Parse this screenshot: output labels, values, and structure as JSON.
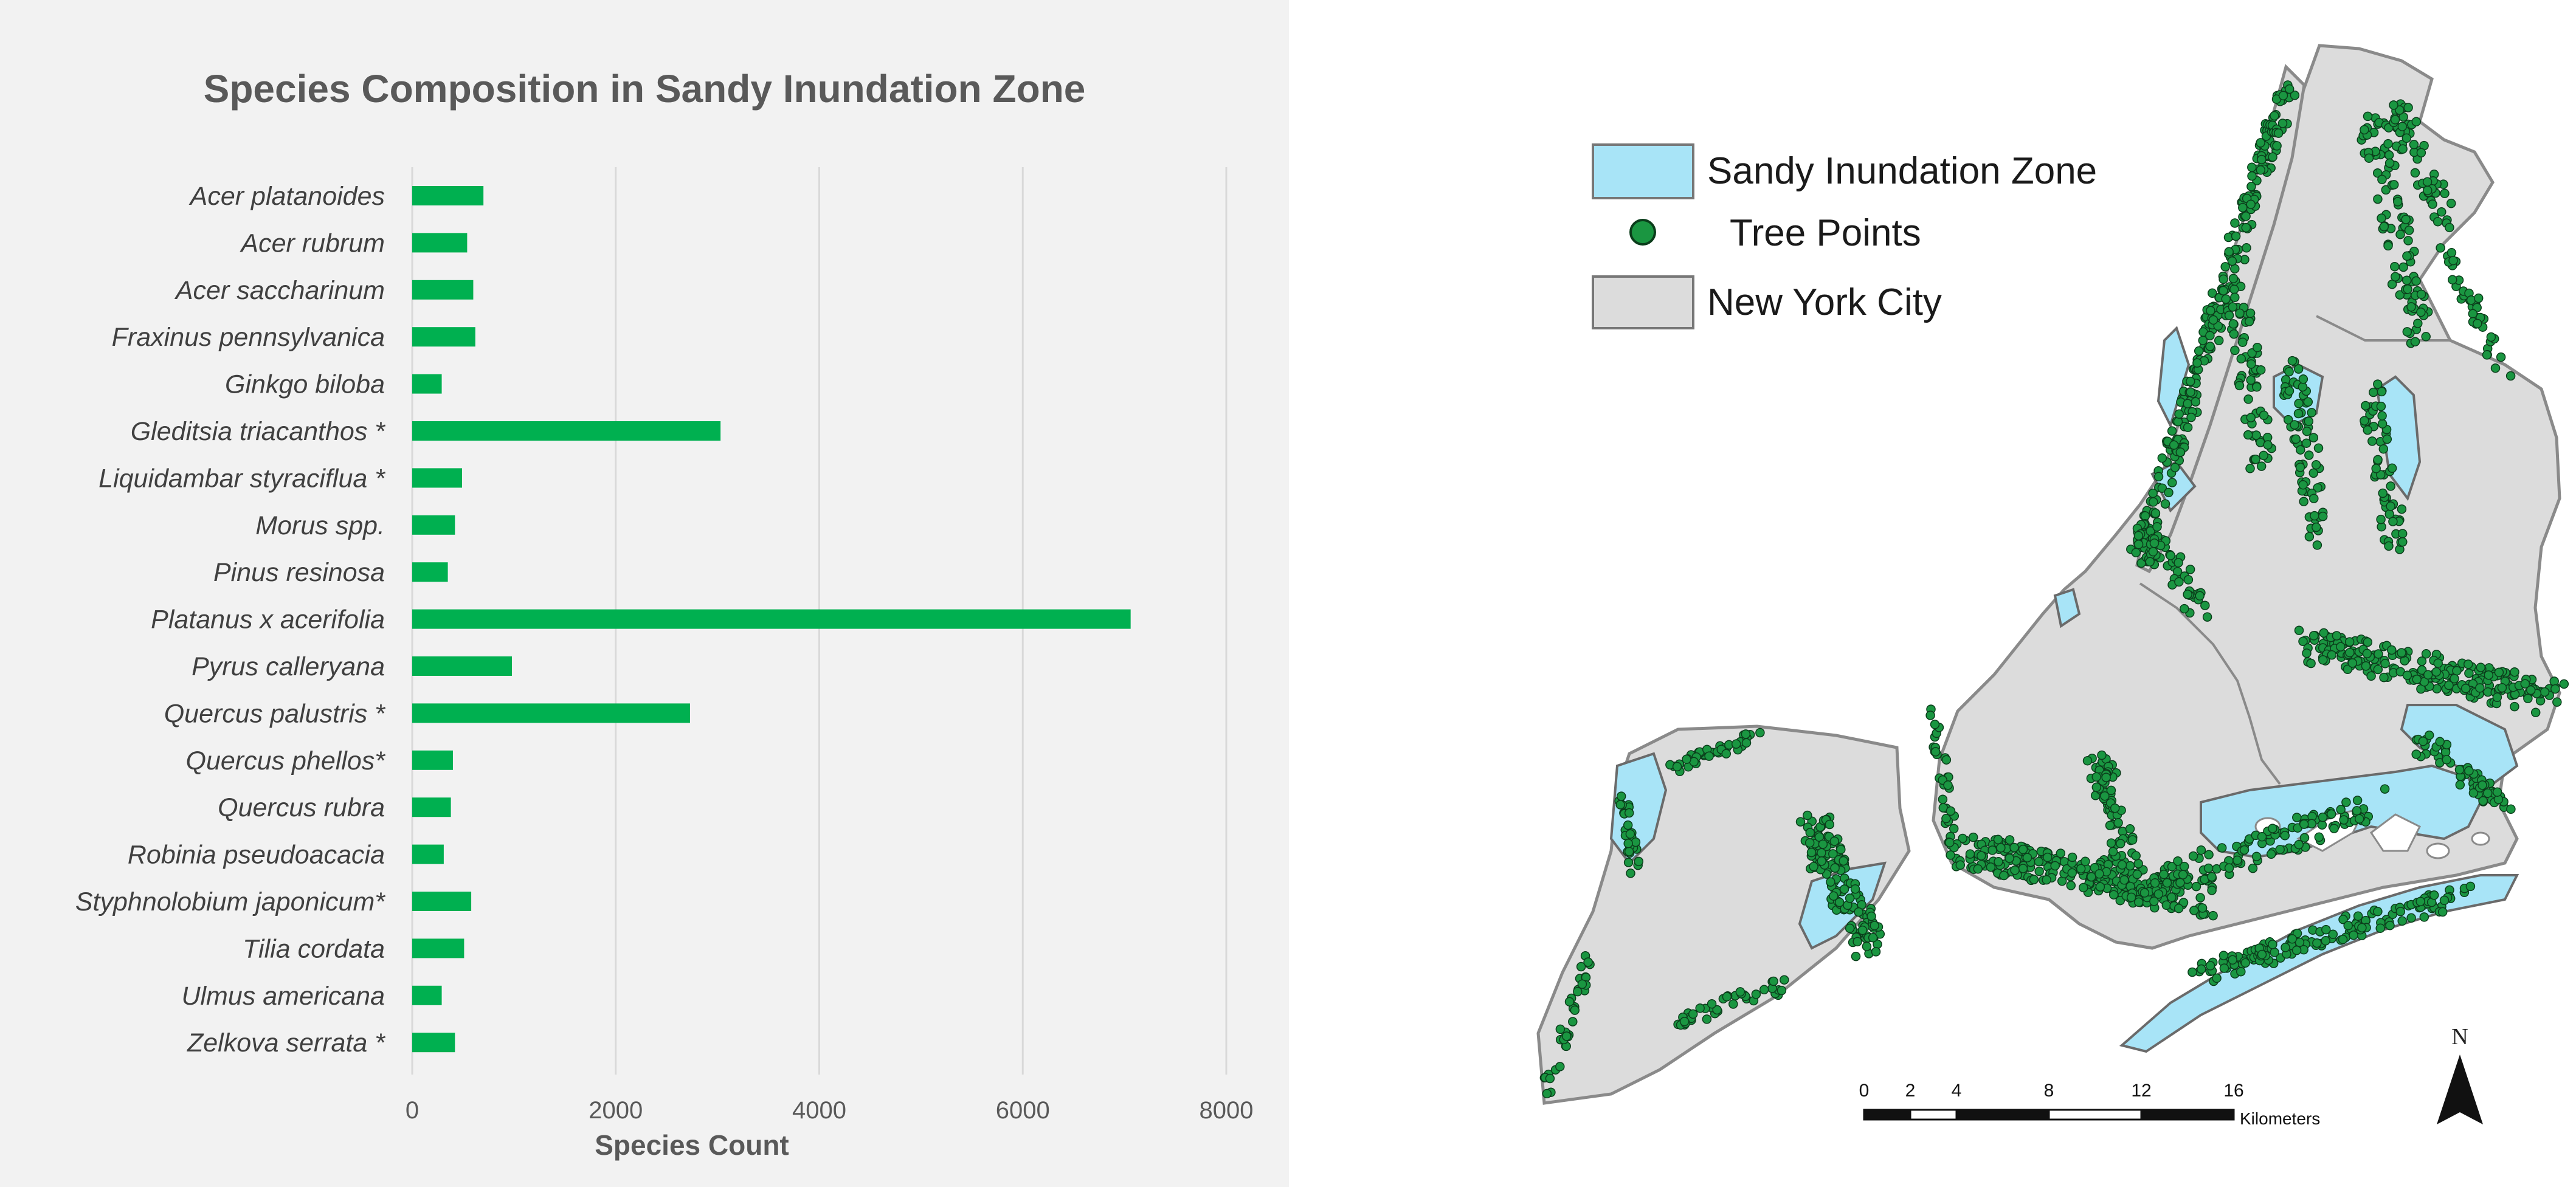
{
  "chart_data": {
    "type": "bar",
    "orientation": "horizontal",
    "title": "Species Composition in Sandy Inundation Zone",
    "xlabel": "Species Count",
    "ylabel": "",
    "xlim": [
      0,
      8000
    ],
    "xticks": [
      0,
      2000,
      4000,
      6000,
      8000
    ],
    "tick_labels": [
      "0",
      "2000",
      "4000",
      "6000",
      "8000"
    ],
    "grid": "vertical",
    "bar_color": "#00b050",
    "categories": [
      "Acer platanoides",
      "Acer rubrum",
      "Acer saccharinum",
      "Fraxinus pennsylvanica",
      "Ginkgo biloba",
      "Gleditsia triacanthos *",
      "Liquidambar styraciflua *",
      "Morus spp.",
      "Pinus resinosa",
      "Platanus x acerifolia",
      "Pyrus calleryana",
      "Quercus palustris *",
      "Quercus phellos*",
      "Quercus rubra",
      "Robinia pseudoacacia",
      "Styphnolobium japonicum*",
      "Tilia cordata",
      "Ulmus americana",
      "Zelkova serrata *"
    ],
    "values": [
      700,
      540,
      600,
      620,
      290,
      3030,
      490,
      420,
      350,
      7060,
      980,
      2730,
      400,
      380,
      310,
      580,
      510,
      290,
      420
    ]
  },
  "map": {
    "legend": [
      {
        "label": "Sandy Inundation Zone",
        "color": "#a8e4f7",
        "symbol": "rect"
      },
      {
        "label": "Tree Points",
        "color": "#1a9641",
        "symbol": "circle"
      },
      {
        "label": "New York City",
        "color": "#dcdcdc",
        "symbol": "rect"
      }
    ],
    "scale_bar": {
      "labels": [
        "0",
        "2",
        "4",
        "8",
        "12",
        "16"
      ],
      "values": [
        0,
        2,
        4,
        8,
        12,
        16
      ],
      "unit": "Kilometers"
    },
    "north_arrow": "N",
    "colors": {
      "land": "#dcdcdc",
      "land_stroke": "#8a8a8a",
      "water_zone": "#a8e4f7",
      "trees": "#1a9641"
    }
  }
}
